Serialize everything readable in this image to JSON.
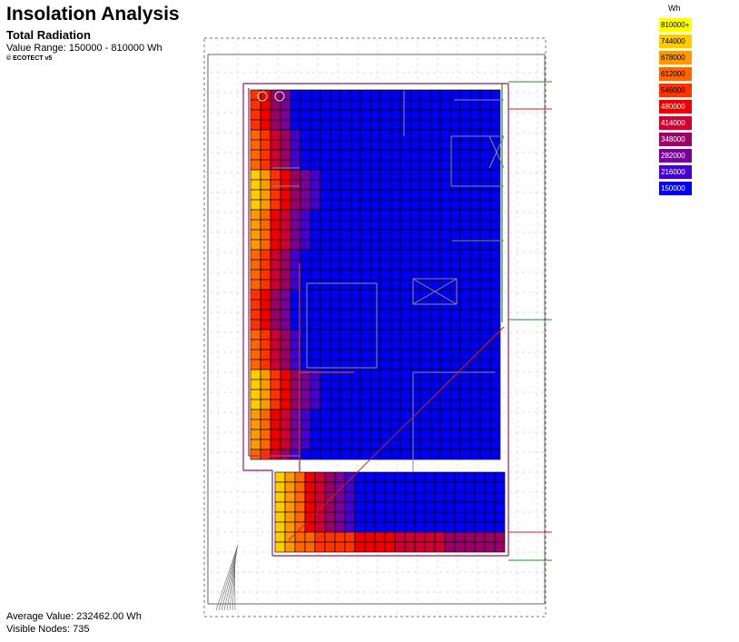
{
  "header": {
    "title": "Insolation Analysis",
    "subtitle": "Total Radiation",
    "range": "Value Range: 150000 - 810000 Wh",
    "credit": "© ECOTECT v5"
  },
  "footer": {
    "average": "Average Value: 232462.00 Wh",
    "nodes": "Visible Nodes: 735"
  },
  "chart_data": {
    "type": "heatmap",
    "title": "Insolation Analysis",
    "subtitle": "Total Radiation",
    "unit": "Wh",
    "value_range": [
      150000,
      810000
    ],
    "average_value": 232462.0,
    "visible_nodes": 735,
    "legend_placement": "top-right",
    "legend": [
      {
        "label": "810000+",
        "value": 810000,
        "color": "#ffff00"
      },
      {
        "label": "744000",
        "value": 744000,
        "color": "#ffcc00"
      },
      {
        "label": "678000",
        "value": 678000,
        "color": "#ff9900"
      },
      {
        "label": "612000",
        "value": 612000,
        "color": "#ff6600"
      },
      {
        "label": "546000",
        "value": 546000,
        "color": "#ff3300"
      },
      {
        "label": "480000",
        "value": 480000,
        "color": "#ee0000"
      },
      {
        "label": "414000",
        "value": 414000,
        "color": "#cc0033"
      },
      {
        "label": "348000",
        "value": 348000,
        "color": "#990066"
      },
      {
        "label": "282000",
        "value": 282000,
        "color": "#770099"
      },
      {
        "label": "216000",
        "value": 216000,
        "color": "#4400cc"
      },
      {
        "label": "150000",
        "value": 150000,
        "color": "#0000ee"
      }
    ]
  }
}
